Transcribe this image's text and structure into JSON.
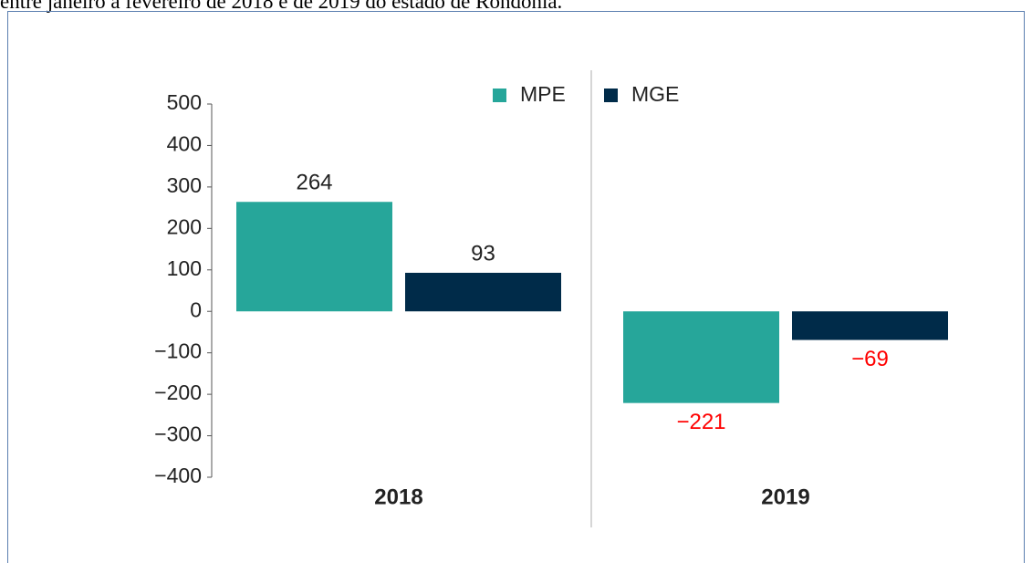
{
  "caption": "entre janeiro a fevereiro de 2018 e de 2019 do estado de Rondônia.",
  "chart_data": {
    "type": "bar",
    "categories": [
      "2018",
      "2019"
    ],
    "series": [
      {
        "name": "MPE",
        "color": "#26a69a",
        "values": [
          264,
          -221
        ],
        "value_labels": [
          "264",
          "−221"
        ]
      },
      {
        "name": "MGE",
        "color": "#002b49",
        "values": [
          93,
          -69
        ],
        "value_labels": [
          "93",
          "−69"
        ]
      }
    ],
    "ylim": [
      -400,
      500
    ],
    "yticks": [
      {
        "value": -400,
        "label": "−400"
      },
      {
        "value": -300,
        "label": "−300"
      },
      {
        "value": -200,
        "label": "−200"
      },
      {
        "value": -100,
        "label": "−100"
      },
      0,
      100,
      200,
      300,
      400,
      500
    ],
    "label_color": "#222222",
    "negative_label_color": "#ff0000",
    "legend": "top"
  }
}
